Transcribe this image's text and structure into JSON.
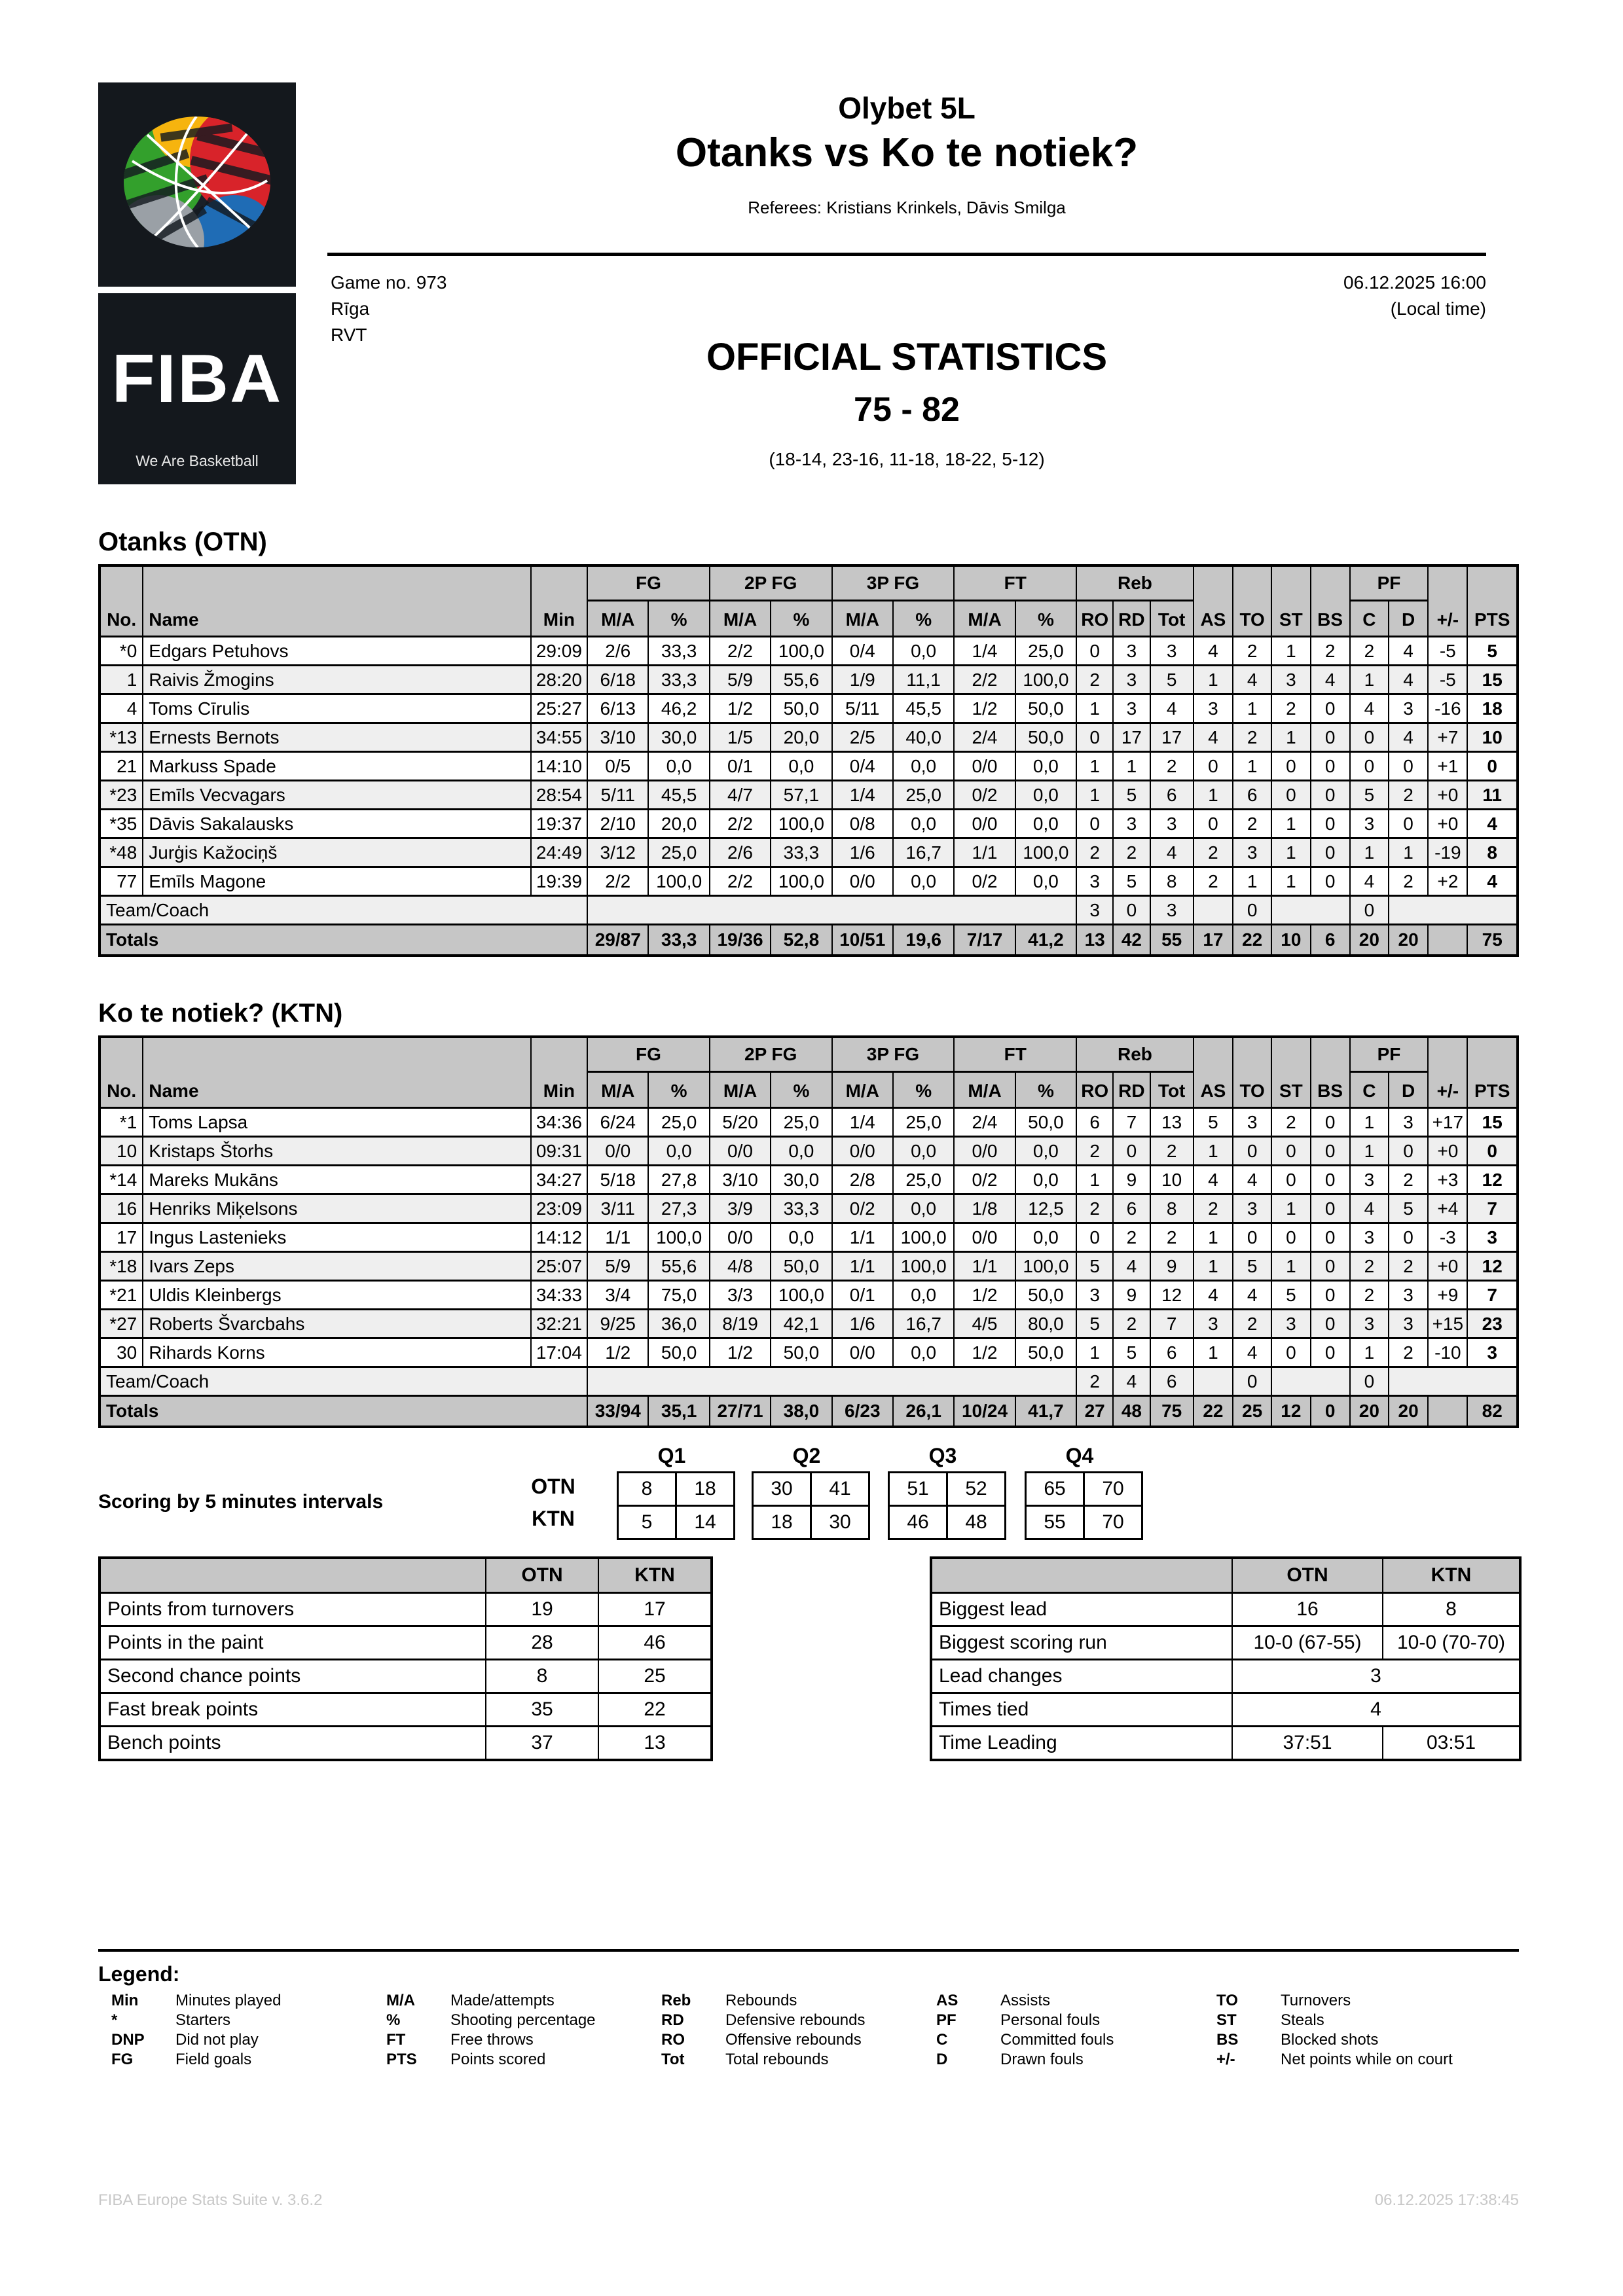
{
  "colors": {
    "header_bg": "#c6c6c6",
    "row_alt_bg": "#efefef",
    "totals_bg": "#c6c6c6",
    "logo_bg": "#14181d",
    "footer_text": "#c8c8c8",
    "ball_green": "#33a02c",
    "ball_yellow": "#f6b40e",
    "ball_red": "#d8232a",
    "ball_blue": "#1f6cb5",
    "ball_gray": "#9aa0a6"
  },
  "logo": {
    "fiba_text": "FIBA",
    "tagline": "We Are Basketball",
    "ball_icon": "fiba-ball-icon"
  },
  "header": {
    "league": "Olybet 5L",
    "match_title": "Otanks vs Ko te notiek?",
    "referees": "Referees: Kristians Krinkels, Dāvis Smilga",
    "game_no": "Game no. 973",
    "city": "Rīga",
    "venue": "RVT",
    "datetime": "06.12.2025 16:00",
    "local_time": "(Local time)",
    "doc_title": "OFFICIAL STATISTICS",
    "final_score": "75 - 82",
    "period_scores": "(18-14, 23-16, 11-18, 18-22, 5-12)"
  },
  "table_header": {
    "groups": {
      "fg": "FG",
      "fg2": "2P FG",
      "fg3": "3P FG",
      "ft": "FT",
      "reb": "Reb",
      "pf": "PF"
    },
    "cols": {
      "no": "No.",
      "name": "Name",
      "min": "Min",
      "ma": "M/A",
      "pct": "%",
      "ro": "RO",
      "rd": "RD",
      "tot": "Tot",
      "as": "AS",
      "to": "TO",
      "st": "ST",
      "bs": "BS",
      "c": "C",
      "d": "D",
      "pm": "+/-",
      "pts": "PTS"
    }
  },
  "teams": [
    {
      "heading": "Otanks (OTN)",
      "code": "OTN",
      "team_coach_label": "Team/Coach",
      "totals_label": "Totals",
      "players": [
        {
          "no": "*0",
          "name": "Edgars Petuhovs",
          "min": "29:09",
          "fg": "2/6",
          "fgp": "33,3",
          "p2": "2/2",
          "p2p": "100,0",
          "p3": "0/4",
          "p3p": "0,0",
          "ft": "1/4",
          "ftp": "25,0",
          "ro": "0",
          "rd": "3",
          "tot": "3",
          "as": "4",
          "to": "2",
          "st": "1",
          "bs": "2",
          "c": "2",
          "d": "4",
          "pm": "-5",
          "pts": "5"
        },
        {
          "no": "1",
          "name": "Raivis Žmogins",
          "min": "28:20",
          "fg": "6/18",
          "fgp": "33,3",
          "p2": "5/9",
          "p2p": "55,6",
          "p3": "1/9",
          "p3p": "11,1",
          "ft": "2/2",
          "ftp": "100,0",
          "ro": "2",
          "rd": "3",
          "tot": "5",
          "as": "1",
          "to": "4",
          "st": "3",
          "bs": "4",
          "c": "1",
          "d": "4",
          "pm": "-5",
          "pts": "15"
        },
        {
          "no": "4",
          "name": "Toms Cīrulis",
          "min": "25:27",
          "fg": "6/13",
          "fgp": "46,2",
          "p2": "1/2",
          "p2p": "50,0",
          "p3": "5/11",
          "p3p": "45,5",
          "ft": "1/2",
          "ftp": "50,0",
          "ro": "1",
          "rd": "3",
          "tot": "4",
          "as": "3",
          "to": "1",
          "st": "2",
          "bs": "0",
          "c": "4",
          "d": "3",
          "pm": "-16",
          "pts": "18"
        },
        {
          "no": "*13",
          "name": "Ernests Bernots",
          "min": "34:55",
          "fg": "3/10",
          "fgp": "30,0",
          "p2": "1/5",
          "p2p": "20,0",
          "p3": "2/5",
          "p3p": "40,0",
          "ft": "2/4",
          "ftp": "50,0",
          "ro": "0",
          "rd": "17",
          "tot": "17",
          "as": "4",
          "to": "2",
          "st": "1",
          "bs": "0",
          "c": "0",
          "d": "4",
          "pm": "+7",
          "pts": "10"
        },
        {
          "no": "21",
          "name": "Markuss Spade",
          "min": "14:10",
          "fg": "0/5",
          "fgp": "0,0",
          "p2": "0/1",
          "p2p": "0,0",
          "p3": "0/4",
          "p3p": "0,0",
          "ft": "0/0",
          "ftp": "0,0",
          "ro": "1",
          "rd": "1",
          "tot": "2",
          "as": "0",
          "to": "1",
          "st": "0",
          "bs": "0",
          "c": "0",
          "d": "0",
          "pm": "+1",
          "pts": "0"
        },
        {
          "no": "*23",
          "name": "Emīls Vecvagars",
          "min": "28:54",
          "fg": "5/11",
          "fgp": "45,5",
          "p2": "4/7",
          "p2p": "57,1",
          "p3": "1/4",
          "p3p": "25,0",
          "ft": "0/2",
          "ftp": "0,0",
          "ro": "1",
          "rd": "5",
          "tot": "6",
          "as": "1",
          "to": "6",
          "st": "0",
          "bs": "0",
          "c": "5",
          "d": "2",
          "pm": "+0",
          "pts": "11"
        },
        {
          "no": "*35",
          "name": "Dāvis Sakalausks",
          "min": "19:37",
          "fg": "2/10",
          "fgp": "20,0",
          "p2": "2/2",
          "p2p": "100,0",
          "p3": "0/8",
          "p3p": "0,0",
          "ft": "0/0",
          "ftp": "0,0",
          "ro": "0",
          "rd": "3",
          "tot": "3",
          "as": "0",
          "to": "2",
          "st": "1",
          "bs": "0",
          "c": "3",
          "d": "0",
          "pm": "+0",
          "pts": "4"
        },
        {
          "no": "*48",
          "name": "Jurģis Kažociņš",
          "min": "24:49",
          "fg": "3/12",
          "fgp": "25,0",
          "p2": "2/6",
          "p2p": "33,3",
          "p3": "1/6",
          "p3p": "16,7",
          "ft": "1/1",
          "ftp": "100,0",
          "ro": "2",
          "rd": "2",
          "tot": "4",
          "as": "2",
          "to": "3",
          "st": "1",
          "bs": "0",
          "c": "1",
          "d": "1",
          "pm": "-19",
          "pts": "8"
        },
        {
          "no": "77",
          "name": "Emīls Magone",
          "min": "19:39",
          "fg": "2/2",
          "fgp": "100,0",
          "p2": "2/2",
          "p2p": "100,0",
          "p3": "0/0",
          "p3p": "0,0",
          "ft": "0/2",
          "ftp": "0,0",
          "ro": "3",
          "rd": "5",
          "tot": "8",
          "as": "2",
          "to": "1",
          "st": "1",
          "bs": "0",
          "c": "4",
          "d": "2",
          "pm": "+2",
          "pts": "4"
        }
      ],
      "team_coach": {
        "ro": "3",
        "rd": "0",
        "tot": "3",
        "to": "0",
        "c": "0"
      },
      "totals": {
        "fg": "29/87",
        "fgp": "33,3",
        "p2": "19/36",
        "p2p": "52,8",
        "p3": "10/51",
        "p3p": "19,6",
        "ft": "7/17",
        "ftp": "41,2",
        "ro": "13",
        "rd": "42",
        "tot": "55",
        "as": "17",
        "to": "22",
        "st": "10",
        "bs": "6",
        "c": "20",
        "d": "20",
        "pm": "",
        "pts": "75"
      }
    },
    {
      "heading": "Ko te notiek? (KTN)",
      "code": "KTN",
      "team_coach_label": "Team/Coach",
      "totals_label": "Totals",
      "players": [
        {
          "no": "*1",
          "name": "Toms Lapsa",
          "min": "34:36",
          "fg": "6/24",
          "fgp": "25,0",
          "p2": "5/20",
          "p2p": "25,0",
          "p3": "1/4",
          "p3p": "25,0",
          "ft": "2/4",
          "ftp": "50,0",
          "ro": "6",
          "rd": "7",
          "tot": "13",
          "as": "5",
          "to": "3",
          "st": "2",
          "bs": "0",
          "c": "1",
          "d": "3",
          "pm": "+17",
          "pts": "15"
        },
        {
          "no": "10",
          "name": "Kristaps Štorhs",
          "min": "09:31",
          "fg": "0/0",
          "fgp": "0,0",
          "p2": "0/0",
          "p2p": "0,0",
          "p3": "0/0",
          "p3p": "0,0",
          "ft": "0/0",
          "ftp": "0,0",
          "ro": "2",
          "rd": "0",
          "tot": "2",
          "as": "1",
          "to": "0",
          "st": "0",
          "bs": "0",
          "c": "1",
          "d": "0",
          "pm": "+0",
          "pts": "0"
        },
        {
          "no": "*14",
          "name": "Mareks Mukāns",
          "min": "34:27",
          "fg": "5/18",
          "fgp": "27,8",
          "p2": "3/10",
          "p2p": "30,0",
          "p3": "2/8",
          "p3p": "25,0",
          "ft": "0/2",
          "ftp": "0,0",
          "ro": "1",
          "rd": "9",
          "tot": "10",
          "as": "4",
          "to": "4",
          "st": "0",
          "bs": "0",
          "c": "3",
          "d": "2",
          "pm": "+3",
          "pts": "12"
        },
        {
          "no": "16",
          "name": "Henriks Miķelsons",
          "min": "23:09",
          "fg": "3/11",
          "fgp": "27,3",
          "p2": "3/9",
          "p2p": "33,3",
          "p3": "0/2",
          "p3p": "0,0",
          "ft": "1/8",
          "ftp": "12,5",
          "ro": "2",
          "rd": "6",
          "tot": "8",
          "as": "2",
          "to": "3",
          "st": "1",
          "bs": "0",
          "c": "4",
          "d": "5",
          "pm": "+4",
          "pts": "7"
        },
        {
          "no": "17",
          "name": "Ingus Lastenieks",
          "min": "14:12",
          "fg": "1/1",
          "fgp": "100,0",
          "p2": "0/0",
          "p2p": "0,0",
          "p3": "1/1",
          "p3p": "100,0",
          "ft": "0/0",
          "ftp": "0,0",
          "ro": "0",
          "rd": "2",
          "tot": "2",
          "as": "1",
          "to": "0",
          "st": "0",
          "bs": "0",
          "c": "3",
          "d": "0",
          "pm": "-3",
          "pts": "3"
        },
        {
          "no": "*18",
          "name": "Ivars Zeps",
          "min": "25:07",
          "fg": "5/9",
          "fgp": "55,6",
          "p2": "4/8",
          "p2p": "50,0",
          "p3": "1/1",
          "p3p": "100,0",
          "ft": "1/1",
          "ftp": "100,0",
          "ro": "5",
          "rd": "4",
          "tot": "9",
          "as": "1",
          "to": "5",
          "st": "1",
          "bs": "0",
          "c": "2",
          "d": "2",
          "pm": "+0",
          "pts": "12"
        },
        {
          "no": "*21",
          "name": "Uldis Kleinbergs",
          "min": "34:33",
          "fg": "3/4",
          "fgp": "75,0",
          "p2": "3/3",
          "p2p": "100,0",
          "p3": "0/1",
          "p3p": "0,0",
          "ft": "1/2",
          "ftp": "50,0",
          "ro": "3",
          "rd": "9",
          "tot": "12",
          "as": "4",
          "to": "4",
          "st": "5",
          "bs": "0",
          "c": "2",
          "d": "3",
          "pm": "+9",
          "pts": "7"
        },
        {
          "no": "*27",
          "name": "Roberts Švarcbahs",
          "min": "32:21",
          "fg": "9/25",
          "fgp": "36,0",
          "p2": "8/19",
          "p2p": "42,1",
          "p3": "1/6",
          "p3p": "16,7",
          "ft": "4/5",
          "ftp": "80,0",
          "ro": "5",
          "rd": "2",
          "tot": "7",
          "as": "3",
          "to": "2",
          "st": "3",
          "bs": "0",
          "c": "3",
          "d": "3",
          "pm": "+15",
          "pts": "23"
        },
        {
          "no": "30",
          "name": "Rihards Korns",
          "min": "17:04",
          "fg": "1/2",
          "fgp": "50,0",
          "p2": "1/2",
          "p2p": "50,0",
          "p3": "0/0",
          "p3p": "0,0",
          "ft": "1/2",
          "ftp": "50,0",
          "ro": "1",
          "rd": "5",
          "tot": "6",
          "as": "1",
          "to": "4",
          "st": "0",
          "bs": "0",
          "c": "1",
          "d": "2",
          "pm": "-10",
          "pts": "3"
        }
      ],
      "team_coach": {
        "ro": "2",
        "rd": "4",
        "tot": "6",
        "to": "0",
        "c": "0"
      },
      "totals": {
        "fg": "33/94",
        "fgp": "35,1",
        "p2": "27/71",
        "p2p": "38,0",
        "p3": "6/23",
        "p3p": "26,1",
        "ft": "10/24",
        "ftp": "41,7",
        "ro": "27",
        "rd": "48",
        "tot": "75",
        "as": "22",
        "to": "25",
        "st": "12",
        "bs": "0",
        "c": "20",
        "d": "20",
        "pm": "",
        "pts": "82"
      }
    }
  ],
  "scoring": {
    "label": "Scoring by 5 minutes intervals",
    "quarters": [
      "Q1",
      "Q2",
      "Q3",
      "Q4"
    ],
    "rows": [
      {
        "team": "OTN",
        "cells": [
          [
            "8",
            "18"
          ],
          [
            "30",
            "41"
          ],
          [
            "51",
            "52"
          ],
          [
            "65",
            "70"
          ]
        ]
      },
      {
        "team": "KTN",
        "cells": [
          [
            "5",
            "14"
          ],
          [
            "18",
            "30"
          ],
          [
            "46",
            "48"
          ],
          [
            "55",
            "70"
          ]
        ]
      }
    ]
  },
  "team_stats_left": {
    "columns": [
      "",
      "OTN",
      "KTN"
    ],
    "rows": [
      {
        "label": "Points from turnovers",
        "otn": "19",
        "ktn": "17"
      },
      {
        "label": "Points in the paint",
        "otn": "28",
        "ktn": "46"
      },
      {
        "label": "Second chance points",
        "otn": "8",
        "ktn": "25"
      },
      {
        "label": "Fast break points",
        "otn": "35",
        "ktn": "22"
      },
      {
        "label": "Bench points",
        "otn": "37",
        "ktn": "13"
      }
    ]
  },
  "team_stats_right": {
    "columns": [
      "",
      "OTN",
      "KTN"
    ],
    "rows": [
      {
        "label": "Biggest lead",
        "otn": "16",
        "ktn": "8",
        "span": false
      },
      {
        "label": "Biggest scoring run",
        "otn": "10-0 (67-55)",
        "ktn": "10-0 (70-70)",
        "span": false
      },
      {
        "label": "Lead changes",
        "value": "3",
        "span": true
      },
      {
        "label": "Times tied",
        "value": "4",
        "span": true
      },
      {
        "label": "Time Leading",
        "otn": "37:51",
        "ktn": "03:51",
        "span": false
      }
    ]
  },
  "legend": {
    "title": "Legend:",
    "columns": [
      [
        {
          "abbr": "Min",
          "desc": "Minutes played"
        },
        {
          "abbr": "*",
          "desc": "Starters"
        },
        {
          "abbr": "DNP",
          "desc": "Did not play"
        },
        {
          "abbr": "FG",
          "desc": "Field goals"
        }
      ],
      [
        {
          "abbr": "M/A",
          "desc": "Made/attempts"
        },
        {
          "abbr": "%",
          "desc": "Shooting percentage"
        },
        {
          "abbr": "FT",
          "desc": "Free throws"
        },
        {
          "abbr": "PTS",
          "desc": "Points scored"
        }
      ],
      [
        {
          "abbr": "Reb",
          "desc": "Rebounds"
        },
        {
          "abbr": "RD",
          "desc": "Defensive rebounds"
        },
        {
          "abbr": "RO",
          "desc": "Offensive rebounds"
        },
        {
          "abbr": "Tot",
          "desc": "Total rebounds"
        }
      ],
      [
        {
          "abbr": "AS",
          "desc": "Assists"
        },
        {
          "abbr": "PF",
          "desc": "Personal fouls"
        },
        {
          "abbr": "C",
          "desc": "Committed fouls"
        },
        {
          "abbr": "D",
          "desc": "Drawn fouls"
        }
      ],
      [
        {
          "abbr": "TO",
          "desc": "Turnovers"
        },
        {
          "abbr": "ST",
          "desc": "Steals"
        },
        {
          "abbr": "BS",
          "desc": "Blocked shots"
        },
        {
          "abbr": "+/-",
          "desc": "Net points while on court"
        }
      ]
    ]
  },
  "footer": {
    "left": "FIBA Europe Stats Suite v. 3.6.2",
    "right": "06.12.2025 17:38:45"
  }
}
